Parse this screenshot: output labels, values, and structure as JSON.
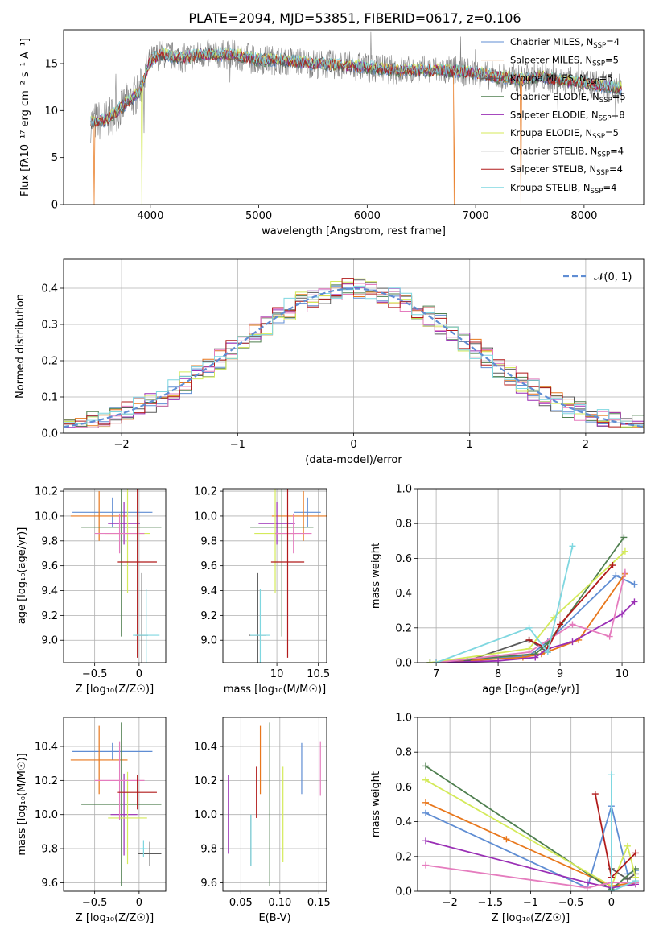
{
  "figure": {
    "title": "PLATE=2094, MJD=53851, FIBERID=0617, z=0.106"
  },
  "chart_data": [
    {
      "id": "spectrum",
      "type": "line",
      "xlabel": "wavelength [Angstrom, rest frame]",
      "ylabel": "Flux [fλ10⁻¹⁷ erg cm⁻² s⁻¹ A⁻¹]",
      "xlim": [
        3200,
        8550
      ],
      "ylim": [
        0,
        18.6
      ],
      "xticks": [
        4000,
        5000,
        6000,
        7000,
        8000
      ],
      "yticks": [
        0,
        5,
        10,
        15
      ],
      "grid": false,
      "legend_position": "top-right",
      "observed_color": "#808080",
      "series": [
        {
          "name": "Chabrier MILES, N_SSP=4",
          "color": "#5f8dd3"
        },
        {
          "name": "Salpeter MILES, N_SSP=5",
          "color": "#e8771c"
        },
        {
          "name": "Kroupa MILES, N_SSP=5",
          "color": "#5a5a5a"
        },
        {
          "name": "Chabrier ELODIE, N_SSP=5",
          "color": "#4f7f4f"
        },
        {
          "name": "Salpeter ELODIE, N_SSP=8",
          "color": "#9a2fb5"
        },
        {
          "name": "Kroupa ELODIE, N_SSP=5",
          "color": "#d4ea5a"
        },
        {
          "name": "Chabrier STELIB, N_SSP=4",
          "color": "#555555"
        },
        {
          "name": "Salpeter STELIB, N_SSP=4",
          "color": "#b11a1a"
        },
        {
          "name": "Kroupa STELIB, N_SSP=4",
          "color": "#7fd7e0"
        }
      ],
      "continuum": {
        "x": [
          3450,
          3600,
          3750,
          3900,
          4000,
          4100,
          4300,
          4500,
          4800,
          5000,
          5200,
          5500,
          5800,
          6000,
          6300,
          6600,
          6800,
          7000,
          7200,
          7400,
          7600,
          7800,
          8000,
          8200,
          8350
        ],
        "y": [
          8.8,
          9.0,
          10.5,
          12.0,
          15.3,
          16.0,
          15.6,
          16.0,
          15.9,
          15.4,
          15.4,
          15.0,
          14.8,
          14.6,
          14.3,
          14.3,
          14.2,
          14.0,
          13.6,
          13.3,
          13.6,
          13.2,
          12.9,
          12.6,
          12.3
        ]
      },
      "drops": [
        {
          "x": 3480,
          "y": 0,
          "series": "Salpeter MILES, N_SSP=5"
        },
        {
          "x": 3920,
          "y": 0,
          "series": "Kroupa ELODIE, N_SSP=5"
        },
        {
          "x": 6800,
          "y": 0,
          "series": "Salpeter MILES, N_SSP=5"
        },
        {
          "x": 7420,
          "y": 0,
          "series": "Salpeter MILES, N_SSP=5"
        }
      ]
    },
    {
      "id": "residuals",
      "type": "line",
      "xlabel": "(data-model)/error",
      "ylabel": "Normed distribution",
      "xlim": [
        -2.5,
        2.5
      ],
      "ylim": [
        0,
        0.48
      ],
      "xticks": [
        -2,
        -1,
        0,
        1,
        2
      ],
      "yticks": [
        0.0,
        0.1,
        0.2,
        0.3,
        0.4
      ],
      "grid": true,
      "legend_position": "top-right",
      "reference": {
        "name": "𝒩(0, 1)",
        "color": "#5f8dd3",
        "mean": 0,
        "std": 1
      },
      "hist_colors": [
        "#5f8dd3",
        "#e8771c",
        "#5a5a5a",
        "#4f7f4f",
        "#9a2fb5",
        "#d4ea5a",
        "#e57cbe",
        "#b11a1a",
        "#7fd7e0"
      ],
      "bin_width": 0.1
    },
    {
      "id": "age-vs-Z",
      "type": "scatter",
      "xlabel": "Z [log₁₀(Z/Z☉)]",
      "ylabel": "age  [log₁₀(age/yr)]",
      "xlim": [
        -0.85,
        0.3
      ],
      "ylim": [
        8.82,
        10.22
      ],
      "xticks": [
        -0.5,
        0.0
      ],
      "yticks": [
        9.0,
        9.2,
        9.4,
        9.6,
        9.8,
        10.0,
        10.2
      ],
      "grid": true,
      "points": [
        {
          "x": -0.3,
          "y": 10.03,
          "xerr": 0.45,
          "yerr": 0.12,
          "color": "#5f8dd3"
        },
        {
          "x": -0.45,
          "y": 10.0,
          "xerr": 0.32,
          "yerr": 0.2,
          "color": "#e8771c"
        },
        {
          "x": 0.03,
          "y": 9.04,
          "xerr": 0.07,
          "yerr": 0.5,
          "color": "#5a5a5a"
        },
        {
          "x": -0.2,
          "y": 9.91,
          "xerr": 0.45,
          "yerr": 0.88,
          "color": "#4f7f4f"
        },
        {
          "x": -0.17,
          "y": 9.94,
          "xerr": 0.18,
          "yerr": 0.17,
          "color": "#9a2fb5"
        },
        {
          "x": -0.13,
          "y": 9.86,
          "xerr": 0.25,
          "yerr": 0.48,
          "color": "#d4ea5a"
        },
        {
          "x": -0.22,
          "y": 9.86,
          "xerr": 0.28,
          "yerr": 0.16,
          "color": "#e57cbe"
        },
        {
          "x": -0.02,
          "y": 9.63,
          "xerr": 0.22,
          "yerr": 0.77,
          "color": "#b11a1a"
        },
        {
          "x": 0.08,
          "y": 9.04,
          "xerr": 0.15,
          "yerr": 0.37,
          "color": "#7fd7e0"
        }
      ]
    },
    {
      "id": "age-vs-mass",
      "type": "scatter",
      "xlabel": "mass [log₁₀(M/M☉)]",
      "ylabel": "",
      "xlim": [
        9.35,
        10.6
      ],
      "ylim": [
        8.82,
        10.22
      ],
      "xticks": [
        10.0,
        10.5
      ],
      "yticks": [
        9.0,
        9.2,
        9.4,
        9.6,
        9.8,
        10.0,
        10.2
      ],
      "grid": true,
      "points": [
        {
          "x": 10.37,
          "y": 10.03,
          "xerr": 0.16,
          "yerr": 0.12,
          "color": "#5f8dd3"
        },
        {
          "x": 10.32,
          "y": 10.0,
          "xerr": 0.38,
          "yerr": 0.2,
          "color": "#e8771c"
        },
        {
          "x": 9.77,
          "y": 9.04,
          "xerr": 0.1,
          "yerr": 0.5,
          "color": "#5a5a5a"
        },
        {
          "x": 10.06,
          "y": 9.91,
          "xerr": 0.38,
          "yerr": 0.88,
          "color": "#4f7f4f"
        },
        {
          "x": 10.0,
          "y": 9.94,
          "xerr": 0.22,
          "yerr": 0.17,
          "color": "#9a2fb5"
        },
        {
          "x": 9.98,
          "y": 9.86,
          "xerr": 0.25,
          "yerr": 0.48,
          "color": "#d4ea5a"
        },
        {
          "x": 10.2,
          "y": 9.86,
          "xerr": 0.22,
          "yerr": 0.16,
          "color": "#e57cbe"
        },
        {
          "x": 10.13,
          "y": 9.63,
          "xerr": 0.2,
          "yerr": 0.77,
          "color": "#b11a1a"
        },
        {
          "x": 9.8,
          "y": 9.04,
          "xerr": 0.12,
          "yerr": 0.37,
          "color": "#7fd7e0"
        }
      ]
    },
    {
      "id": "mass-weight-vs-age",
      "type": "line",
      "xlabel": "age  [log₁₀(age/yr)]",
      "ylabel": "mass weight",
      "xlim": [
        6.7,
        10.35
      ],
      "ylim": [
        0,
        1.0
      ],
      "xticks": [
        7,
        8,
        9,
        10
      ],
      "yticks": [
        0.0,
        0.2,
        0.4,
        0.6,
        0.8,
        1.0
      ],
      "grid": true,
      "series": [
        {
          "color": "#5f8dd3",
          "x": [
            6.9,
            7.5,
            8.5,
            8.8,
            9.9,
            10.2
          ],
          "y": [
            0.0,
            0.01,
            0.04,
            0.12,
            0.5,
            0.45
          ]
        },
        {
          "color": "#e8771c",
          "x": [
            7.0,
            8.4,
            8.7,
            9.3,
            10.05
          ],
          "y": [
            0.0,
            0.03,
            0.05,
            0.13,
            0.51
          ]
        },
        {
          "color": "#5a5a5a",
          "x": [
            7.5,
            8.5,
            8.8
          ],
          "y": [
            0.01,
            0.13,
            0.06
          ]
        },
        {
          "color": "#4f7f4f",
          "x": [
            6.9,
            8.6,
            8.8,
            10.03
          ],
          "y": [
            0.0,
            0.05,
            0.11,
            0.72
          ]
        },
        {
          "color": "#9a2fb5",
          "x": [
            7.0,
            8.0,
            8.6,
            8.8,
            9.2,
            10.0,
            10.2
          ],
          "y": [
            0.0,
            0.01,
            0.03,
            0.08,
            0.12,
            0.28,
            0.35
          ]
        },
        {
          "color": "#d4ea5a",
          "x": [
            6.9,
            8.5,
            8.9,
            10.05
          ],
          "y": [
            0.0,
            0.08,
            0.26,
            0.64
          ]
        },
        {
          "color": "#e57cbe",
          "x": [
            7.0,
            8.5,
            9.2,
            9.8,
            10.05
          ],
          "y": [
            0.0,
            0.06,
            0.22,
            0.15,
            0.52
          ]
        },
        {
          "color": "#b11a1a",
          "x": [
            8.5,
            8.8,
            9.0,
            9.85
          ],
          "y": [
            0.13,
            0.08,
            0.22,
            0.56
          ]
        },
        {
          "color": "#7fd7e0",
          "x": [
            7.0,
            8.5,
            8.8,
            9.2
          ],
          "y": [
            0.0,
            0.2,
            0.06,
            0.67
          ]
        }
      ]
    },
    {
      "id": "mass-vs-Z",
      "type": "scatter",
      "xlabel": "Z [log₁₀(Z/Z☉)]",
      "ylabel": "mass [log₁₀(M/M☉)]",
      "xlim": [
        -0.85,
        0.3
      ],
      "ylim": [
        9.55,
        10.57
      ],
      "xticks": [
        -0.5,
        0.0
      ],
      "yticks": [
        9.6,
        9.8,
        10.0,
        10.2,
        10.4
      ],
      "grid": true,
      "points": [
        {
          "x": -0.3,
          "y": 10.37,
          "xerr": 0.45,
          "yerr": 0.05,
          "color": "#5f8dd3"
        },
        {
          "x": -0.45,
          "y": 10.32,
          "xerr": 0.32,
          "yerr": 0.2,
          "color": "#e8771c"
        },
        {
          "x": 0.12,
          "y": 9.77,
          "xerr": 0.13,
          "yerr": 0.07,
          "color": "#5a5a5a"
        },
        {
          "x": -0.2,
          "y": 10.06,
          "xerr": 0.45,
          "yerr": 0.48,
          "color": "#4f7f4f"
        },
        {
          "x": -0.17,
          "y": 10.0,
          "xerr": 0.15,
          "yerr": 0.24,
          "color": "#9a2fb5"
        },
        {
          "x": -0.13,
          "y": 9.98,
          "xerr": 0.22,
          "yerr": 0.27,
          "color": "#d4ea5a"
        },
        {
          "x": -0.22,
          "y": 10.2,
          "xerr": 0.28,
          "yerr": 0.23,
          "color": "#e57cbe"
        },
        {
          "x": -0.02,
          "y": 10.13,
          "xerr": 0.22,
          "yerr": 0.1,
          "color": "#b11a1a"
        },
        {
          "x": 0.05,
          "y": 9.8,
          "xerr": 0.04,
          "yerr": 0.05,
          "color": "#7fd7e0"
        }
      ]
    },
    {
      "id": "mass-vs-EBV",
      "type": "scatter",
      "xlabel": "E(B-V)",
      "ylabel": "",
      "xlim": [
        0.027,
        0.16
      ],
      "ylim": [
        9.55,
        10.57
      ],
      "xticks": [
        0.05,
        0.1,
        0.15
      ],
      "xticklabels": [
        "0.05",
        "0.10",
        "0.15"
      ],
      "yticks": [
        9.6,
        9.8,
        10.0,
        10.2,
        10.4
      ],
      "grid": true,
      "points": [
        {
          "x": 0.128,
          "y": 10.27,
          "yerr": 0.15,
          "color": "#5f8dd3"
        },
        {
          "x": 0.075,
          "y": 10.32,
          "yerr": 0.2,
          "color": "#e8771c"
        },
        {
          "x": 0.063,
          "y": 9.85,
          "yerr": 0.15,
          "color": "#5a5a5a"
        },
        {
          "x": 0.087,
          "y": 10.06,
          "yerr": 0.48,
          "color": "#4f7f4f"
        },
        {
          "x": 0.034,
          "y": 10.0,
          "yerr": 0.23,
          "color": "#9a2fb5"
        },
        {
          "x": 0.104,
          "y": 10.0,
          "yerr": 0.28,
          "color": "#d4ea5a"
        },
        {
          "x": 0.152,
          "y": 10.27,
          "yerr": 0.16,
          "color": "#e57cbe"
        },
        {
          "x": 0.07,
          "y": 10.13,
          "yerr": 0.15,
          "color": "#b11a1a"
        },
        {
          "x": 0.063,
          "y": 9.85,
          "yerr": 0.15,
          "color": "#7fd7e0"
        }
      ]
    },
    {
      "id": "mass-weight-vs-Z",
      "type": "line",
      "xlabel": "Z [log₁₀(Z/Z☉)]",
      "ylabel": "mass weight",
      "xlim": [
        -2.4,
        0.4
      ],
      "ylim": [
        0,
        1.0
      ],
      "xticks": [
        -2.0,
        -1.5,
        -1.0,
        -0.5,
        0.0
      ],
      "yticks": [
        0.0,
        0.2,
        0.4,
        0.6,
        0.8,
        1.0
      ],
      "grid": true,
      "series": [
        {
          "color": "#5f8dd3",
          "x": [
            -2.3,
            -0.3,
            0.0,
            0.2,
            0.3
          ],
          "y": [
            0.45,
            0.02,
            0.49,
            0.1,
            0.12
          ]
        },
        {
          "color": "#e8771c",
          "x": [
            -2.3,
            -1.3,
            0.0,
            0.3
          ],
          "y": [
            0.51,
            0.3,
            0.03,
            0.05
          ]
        },
        {
          "color": "#5a5a5a",
          "x": [
            0.0,
            0.2,
            0.3
          ],
          "y": [
            0.13,
            0.07,
            0.1
          ]
        },
        {
          "color": "#4f7f4f",
          "x": [
            -2.3,
            0.0,
            0.3
          ],
          "y": [
            0.72,
            0.01,
            0.13
          ]
        },
        {
          "color": "#9a2fb5",
          "x": [
            -2.3,
            -0.3,
            0.0,
            0.3
          ],
          "y": [
            0.29,
            0.05,
            0.02,
            0.04
          ]
        },
        {
          "color": "#d4ea5a",
          "x": [
            -2.3,
            0.0,
            0.2,
            0.3
          ],
          "y": [
            0.64,
            0.03,
            0.26,
            0.08
          ]
        },
        {
          "color": "#e57cbe",
          "x": [
            -2.3,
            -0.3,
            0.0,
            0.3
          ],
          "y": [
            0.15,
            0.02,
            0.05,
            0.05
          ]
        },
        {
          "color": "#b11a1a",
          "x": [
            -0.2,
            0.0,
            0.3
          ],
          "y": [
            0.56,
            0.08,
            0.22
          ]
        },
        {
          "color": "#7fd7e0",
          "x": [
            0.0,
            0.0,
            0.3
          ],
          "y": [
            0.67,
            0.0,
            0.06
          ]
        }
      ]
    }
  ]
}
